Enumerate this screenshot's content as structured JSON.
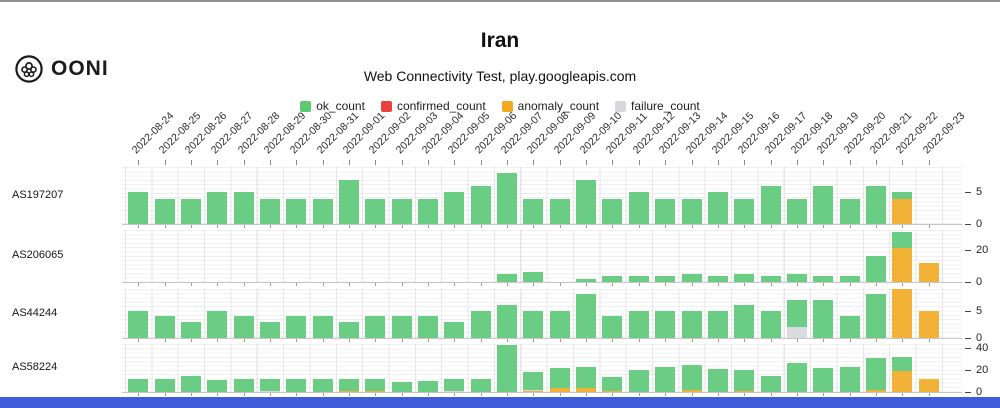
{
  "logo": {
    "text": "OONI"
  },
  "header": {
    "title": "Iran",
    "subtitle": "Web Connectivity Test, play.googleapis.com"
  },
  "legend": [
    {
      "label": "ok_count",
      "color": "#5ec973"
    },
    {
      "label": "confirmed_count",
      "color": "#e8413c"
    },
    {
      "label": "anomaly_count",
      "color": "#f2a91f"
    },
    {
      "label": "failure_count",
      "color": "#d6d9dc"
    }
  ],
  "colors": {
    "ok": "#6bcd84",
    "confirmed": "#e8413c",
    "anomaly": "#f2b237",
    "failure": "#d9dcdf",
    "footer_bar": "#3f5dd9"
  },
  "chart_data": {
    "type": "bar",
    "stacked": true,
    "title": "Iran",
    "subtitle": "Web Connectivity Test, play.googleapis.com",
    "legend_position": "top",
    "grid": true,
    "series_keys": [
      "ok_count",
      "confirmed_count",
      "anomaly_count",
      "failure_count"
    ],
    "categories": [
      "2022-08-24",
      "2022-08-25",
      "2022-08-26",
      "2022-08-27",
      "2022-08-28",
      "2022-08-29",
      "2022-08-30",
      "2022-08-31",
      "2022-09-01",
      "2022-09-02",
      "2022-09-03",
      "2022-09-04",
      "2022-09-05",
      "2022-09-06",
      "2022-09-07",
      "2022-09-08",
      "2022-09-09",
      "2022-09-10",
      "2022-09-11",
      "2022-09-12",
      "2022-09-13",
      "2022-09-14",
      "2022-09-15",
      "2022-09-16",
      "2022-09-17",
      "2022-09-18",
      "2022-09-19",
      "2022-09-20",
      "2022-09-21",
      "2022-09-22",
      "2022-09-23"
    ],
    "rows": [
      {
        "label": "AS197207",
        "ymax": 9,
        "axis_ticks": [
          {
            "label": "5",
            "value": 5
          },
          {
            "label": "0",
            "value": 0
          }
        ],
        "values": [
          [
            5,
            0,
            0,
            0
          ],
          [
            4,
            0,
            0,
            0
          ],
          [
            4,
            0,
            0,
            0
          ],
          [
            5,
            0,
            0,
            0
          ],
          [
            5,
            0,
            0,
            0
          ],
          [
            4,
            0,
            0,
            0
          ],
          [
            4,
            0,
            0,
            0
          ],
          [
            4,
            0,
            0,
            0
          ],
          [
            7,
            0,
            0,
            0
          ],
          [
            4,
            0,
            0,
            0
          ],
          [
            4,
            0,
            0,
            0
          ],
          [
            4,
            0,
            0,
            0
          ],
          [
            5,
            0,
            0,
            0
          ],
          [
            6,
            0,
            0,
            0
          ],
          [
            8,
            0,
            0,
            0
          ],
          [
            4,
            0,
            0,
            0
          ],
          [
            4,
            0,
            0,
            0
          ],
          [
            7,
            0,
            0,
            0
          ],
          [
            4,
            0,
            0,
            0
          ],
          [
            5,
            0,
            0,
            0
          ],
          [
            4,
            0,
            0,
            0
          ],
          [
            4,
            0,
            0,
            0
          ],
          [
            5,
            0,
            0,
            0
          ],
          [
            4,
            0,
            0,
            0
          ],
          [
            6,
            0,
            0,
            0
          ],
          [
            4,
            0,
            0,
            0
          ],
          [
            6,
            0,
            0,
            0
          ],
          [
            4,
            0,
            0,
            0
          ],
          [
            6,
            0,
            0,
            0
          ],
          [
            1,
            0,
            4,
            0
          ],
          [
            0,
            0,
            0,
            0
          ]
        ]
      },
      {
        "label": "AS206065",
        "ymax": 32,
        "axis_ticks": [
          {
            "label": "20",
            "value": 20
          },
          {
            "label": "0",
            "value": 0
          }
        ],
        "values": [
          [
            0,
            0,
            0,
            0
          ],
          [
            0,
            0,
            0,
            0
          ],
          [
            0,
            0,
            0,
            0
          ],
          [
            0,
            0,
            0,
            0
          ],
          [
            0,
            0,
            0,
            0
          ],
          [
            0,
            0,
            0,
            0
          ],
          [
            0,
            0,
            0,
            0
          ],
          [
            0,
            0,
            0,
            0
          ],
          [
            0,
            0,
            0,
            0
          ],
          [
            0,
            0,
            0,
            0
          ],
          [
            0,
            0,
            0,
            0
          ],
          [
            0,
            0,
            0,
            0
          ],
          [
            0,
            0,
            0,
            0
          ],
          [
            0,
            0,
            0,
            0
          ],
          [
            5,
            0,
            0,
            0
          ],
          [
            6,
            0,
            0,
            0
          ],
          [
            0,
            0,
            0,
            0
          ],
          [
            2,
            0,
            0,
            0
          ],
          [
            4,
            0,
            0,
            0
          ],
          [
            4,
            0,
            0,
            0
          ],
          [
            4,
            0,
            0,
            0
          ],
          [
            5,
            0,
            0,
            0
          ],
          [
            4,
            0,
            0,
            0
          ],
          [
            5,
            0,
            0,
            0
          ],
          [
            4,
            0,
            0,
            0
          ],
          [
            5,
            0,
            0,
            0
          ],
          [
            4,
            0,
            0,
            0
          ],
          [
            4,
            0,
            0,
            0
          ],
          [
            16,
            0,
            0,
            0
          ],
          [
            10,
            0,
            21,
            0
          ],
          [
            0,
            0,
            12,
            0
          ]
        ]
      },
      {
        "label": "AS44244",
        "ymax": 9,
        "axis_ticks": [
          {
            "label": "5",
            "value": 5
          },
          {
            "label": "0",
            "value": 0
          }
        ],
        "values": [
          [
            5,
            0,
            0,
            0
          ],
          [
            4,
            0,
            0,
            0
          ],
          [
            3,
            0,
            0,
            0
          ],
          [
            5,
            0,
            0,
            0
          ],
          [
            4,
            0,
            0,
            0
          ],
          [
            3,
            0,
            0,
            0
          ],
          [
            4,
            0,
            0,
            0
          ],
          [
            4,
            0,
            0,
            0
          ],
          [
            3,
            0,
            0,
            0
          ],
          [
            4,
            0,
            0,
            0
          ],
          [
            4,
            0,
            0,
            0
          ],
          [
            4,
            0,
            0,
            0
          ],
          [
            3,
            0,
            0,
            0
          ],
          [
            5,
            0,
            0,
            0
          ],
          [
            6,
            0,
            0,
            0
          ],
          [
            5,
            0,
            0,
            0
          ],
          [
            5,
            0,
            0,
            0
          ],
          [
            8,
            0,
            0,
            0
          ],
          [
            4,
            0,
            0,
            0
          ],
          [
            5,
            0,
            0,
            0
          ],
          [
            5,
            0,
            0,
            0
          ],
          [
            5,
            0,
            0,
            0
          ],
          [
            5,
            0,
            0,
            0
          ],
          [
            6,
            0,
            0,
            0
          ],
          [
            5,
            0,
            0,
            0
          ],
          [
            5,
            0,
            0,
            2
          ],
          [
            7,
            0,
            0,
            0
          ],
          [
            4,
            0,
            0,
            0
          ],
          [
            8,
            0,
            0,
            0
          ],
          [
            0,
            0,
            9,
            0
          ],
          [
            0,
            0,
            5,
            0
          ]
        ]
      },
      {
        "label": "AS58224",
        "ymax": 44,
        "axis_ticks": [
          {
            "label": "40",
            "value": 40
          },
          {
            "label": "20",
            "value": 20
          },
          {
            "label": "0",
            "value": 0
          }
        ],
        "values": [
          [
            12,
            0,
            0,
            0
          ],
          [
            12,
            0,
            0,
            0
          ],
          [
            15,
            0,
            0,
            0
          ],
          [
            11,
            0,
            0,
            0
          ],
          [
            12,
            0,
            0,
            0
          ],
          [
            11,
            0,
            0,
            1
          ],
          [
            12,
            0,
            0,
            0
          ],
          [
            12,
            0,
            0,
            0
          ],
          [
            11,
            0,
            1,
            0
          ],
          [
            11,
            0,
            1,
            0
          ],
          [
            9,
            0,
            0,
            0
          ],
          [
            10,
            0,
            0,
            0
          ],
          [
            11,
            0,
            0,
            1
          ],
          [
            12,
            0,
            0,
            0
          ],
          [
            43,
            0,
            0,
            0
          ],
          [
            16,
            0,
            1,
            1
          ],
          [
            18,
            0,
            4,
            0
          ],
          [
            19,
            0,
            4,
            0
          ],
          [
            13,
            0,
            1,
            0
          ],
          [
            20,
            0,
            0,
            0
          ],
          [
            23,
            0,
            0,
            0
          ],
          [
            23,
            0,
            2,
            0
          ],
          [
            21,
            0,
            0,
            0
          ],
          [
            19,
            0,
            1,
            0
          ],
          [
            15,
            0,
            0,
            0
          ],
          [
            27,
            0,
            0,
            0
          ],
          [
            22,
            0,
            0,
            0
          ],
          [
            23,
            0,
            0,
            0
          ],
          [
            29,
            0,
            2,
            0
          ],
          [
            13,
            0,
            19,
            0
          ],
          [
            0,
            0,
            12,
            0
          ]
        ]
      }
    ]
  }
}
